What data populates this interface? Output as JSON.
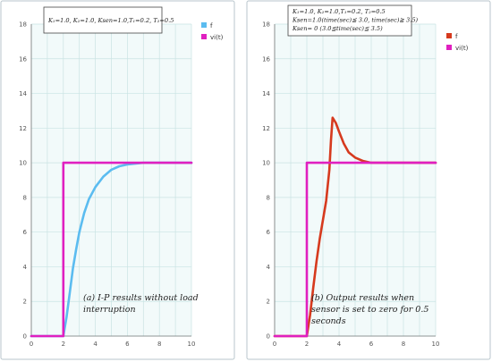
{
  "chart_data": [
    {
      "type": "line",
      "xlim": [
        0,
        10
      ],
      "ylim": [
        0,
        18
      ],
      "xticks": [
        "0",
        "2",
        "4",
        "6",
        "8",
        "10"
      ],
      "yticks": [
        "0",
        "2",
        "4",
        "6",
        "8",
        "10",
        "12",
        "14",
        "16",
        "18"
      ],
      "grid": true,
      "legend_placement": "top-right",
      "params_box": [
        "K₁=1.0, K₂=1.0, Ksen=1.0,T₁=0.2, T₂=0.5"
      ],
      "caption": [
        "(a)  I-P results without load",
        "interruption"
      ],
      "series": [
        {
          "name": "f",
          "color": "#5bbcf0",
          "x": [
            0,
            2.0,
            2.2,
            2.4,
            2.6,
            2.8,
            3.0,
            3.3,
            3.6,
            4.0,
            4.5,
            5.0,
            5.5,
            6.0,
            7.0,
            8.0,
            10.0
          ],
          "y": [
            0,
            0,
            1.1,
            2.5,
            3.9,
            5.0,
            6.0,
            7.1,
            7.9,
            8.6,
            9.2,
            9.6,
            9.8,
            9.9,
            10.0,
            10.0,
            10.0
          ]
        },
        {
          "name": "vi(t)",
          "color": "#e020c0",
          "x": [
            0,
            2.0,
            2.0,
            10.0
          ],
          "y": [
            0,
            0,
            10,
            10
          ]
        }
      ]
    },
    {
      "type": "line",
      "xlim": [
        0,
        10
      ],
      "ylim": [
        0,
        18
      ],
      "xticks": [
        "0",
        "2",
        "4",
        "6",
        "8",
        "10"
      ],
      "yticks": [
        "0",
        "2",
        "4",
        "6",
        "8",
        "10",
        "12",
        "14",
        "16",
        "18"
      ],
      "grid": true,
      "legend_placement": "top-right",
      "params_box": [
        "K₁=1.0, K₂=1.0,T₁=0.2, T₂=0.5",
        "Ksen=1.0(time(sec)≦ 3.0, time(sec)≧ 3.5)",
        "Ksen= 0 (3.0≦time(sec)≦ 3.5)"
      ],
      "caption": [
        "(b) Output results when",
        "sensor is set to zero for 0.5",
        "seconds"
      ],
      "series": [
        {
          "name": "f",
          "color": "#d63a1e",
          "x": [
            0,
            2.0,
            2.2,
            2.4,
            2.6,
            2.8,
            3.0,
            3.2,
            3.4,
            3.5,
            3.6,
            3.8,
            4.0,
            4.3,
            4.6,
            5.0,
            5.5,
            6.0,
            7.0,
            8.0,
            10.0
          ],
          "y": [
            0,
            0,
            1.2,
            2.8,
            4.3,
            5.6,
            6.7,
            7.8,
            9.6,
            11.3,
            12.6,
            12.3,
            11.8,
            11.1,
            10.6,
            10.3,
            10.1,
            10.0,
            10.0,
            10.0,
            10.0
          ]
        },
        {
          "name": "vi(t)",
          "color": "#e020c0",
          "x": [
            0,
            2.0,
            2.0,
            10.0
          ],
          "y": [
            0,
            0,
            10,
            10
          ]
        }
      ]
    }
  ]
}
